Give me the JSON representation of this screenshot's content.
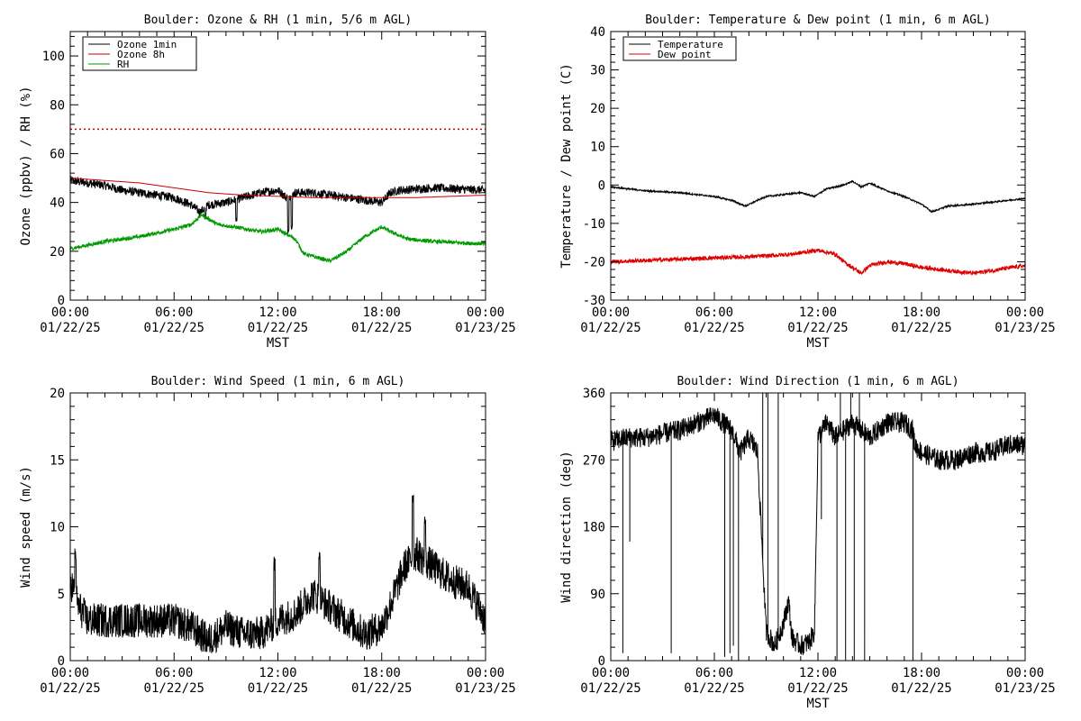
{
  "chart_data": [
    {
      "type": "line",
      "title": "Boulder: Ozone & RH (1 min, 5/6 m AGL)",
      "xlabel": "MST",
      "ylabel": "Ozone (ppbv) / RH (%)",
      "ylim": [
        0,
        110
      ],
      "yticks": [
        0,
        20,
        40,
        60,
        80,
        100
      ],
      "xticks": [
        "00:00",
        "06:00",
        "12:00",
        "18:00",
        "00:00"
      ],
      "xtick_dates": [
        "01/22/25",
        "01/22/25",
        "01/22/25",
        "01/22/25",
        "01/23/25"
      ],
      "legend_position": "top-left",
      "reference_line": {
        "y": 70,
        "color": "#cc0000",
        "style": "dotted"
      },
      "series": [
        {
          "name": "Ozone 1min",
          "color": "#000000",
          "noise": 1.8,
          "points": [
            [
              0,
              49
            ],
            [
              1,
              48
            ],
            [
              2,
              47
            ],
            [
              3,
              45
            ],
            [
              4,
              44
            ],
            [
              5,
              43
            ],
            [
              6,
              42
            ],
            [
              7,
              39
            ],
            [
              7.5,
              36
            ],
            [
              8,
              39
            ],
            [
              9,
              40
            ],
            [
              10,
              42
            ],
            [
              11,
              44
            ],
            [
              12,
              45
            ],
            [
              12.5,
              42
            ],
            [
              13,
              44
            ],
            [
              14,
              44
            ],
            [
              15,
              43
            ],
            [
              16,
              42
            ],
            [
              17,
              41
            ],
            [
              18,
              40
            ],
            [
              18.5,
              44
            ],
            [
              19,
              45
            ],
            [
              21,
              46
            ],
            [
              24,
              45
            ]
          ],
          "spikes": [
            [
              12.6,
              28
            ],
            [
              12.8,
              30
            ],
            [
              9.6,
              33
            ],
            [
              7.8,
              34
            ]
          ]
        },
        {
          "name": "Ozone 8h",
          "color": "#cc0000",
          "noise": 0,
          "points": [
            [
              0,
              50
            ],
            [
              2,
              49
            ],
            [
              4,
              48
            ],
            [
              6,
              46
            ],
            [
              8,
              44
            ],
            [
              10,
              43
            ],
            [
              12,
              42.5
            ],
            [
              14,
              42
            ],
            [
              16,
              42
            ],
            [
              18,
              42
            ],
            [
              20,
              42
            ],
            [
              22,
              42.5
            ],
            [
              24,
              43
            ]
          ]
        },
        {
          "name": "RH",
          "color": "#009900",
          "noise": 0.8,
          "points": [
            [
              0,
              21
            ],
            [
              2,
              24
            ],
            [
              4,
              26
            ],
            [
              6,
              29
            ],
            [
              7,
              31
            ],
            [
              7.6,
              35
            ],
            [
              8.5,
              31
            ],
            [
              9.5,
              30
            ],
            [
              11,
              28
            ],
            [
              12,
              29
            ],
            [
              13,
              25
            ],
            [
              13.5,
              19
            ],
            [
              14,
              18
            ],
            [
              15,
              16
            ],
            [
              16,
              20
            ],
            [
              17,
              26
            ],
            [
              18,
              30
            ],
            [
              18.5,
              28
            ],
            [
              19.5,
              25
            ],
            [
              21,
              24
            ],
            [
              24,
              23
            ]
          ]
        }
      ]
    },
    {
      "type": "line",
      "title": "Boulder: Temperature & Dew point (1 min, 6 m AGL)",
      "xlabel": "MST",
      "ylabel": "Temperature / Dew point (C)",
      "ylim": [
        -30,
        40
      ],
      "yticks": [
        -30,
        -20,
        -10,
        0,
        10,
        20,
        30,
        40
      ],
      "xticks": [
        "00:00",
        "06:00",
        "12:00",
        "18:00",
        "00:00"
      ],
      "xtick_dates": [
        "01/22/25",
        "01/22/25",
        "01/22/25",
        "01/22/25",
        "01/23/25"
      ],
      "legend_position": "top-left",
      "series": [
        {
          "name": "Temperature",
          "color": "#000000",
          "noise": 0.2,
          "points": [
            [
              0,
              -0.5
            ],
            [
              2,
              -1.5
            ],
            [
              4,
              -2
            ],
            [
              6,
              -3
            ],
            [
              7,
              -4
            ],
            [
              7.8,
              -5.5
            ],
            [
              8.5,
              -4
            ],
            [
              9,
              -3
            ],
            [
              10,
              -2.5
            ],
            [
              11,
              -2
            ],
            [
              11.8,
              -3
            ],
            [
              12.5,
              -1
            ],
            [
              13.5,
              0
            ],
            [
              14,
              1
            ],
            [
              14.5,
              -0.5
            ],
            [
              15,
              0.5
            ],
            [
              16,
              -1.5
            ],
            [
              17,
              -3
            ],
            [
              18,
              -5
            ],
            [
              18.6,
              -7
            ],
            [
              19.5,
              -5.5
            ],
            [
              21,
              -5
            ],
            [
              24,
              -3.5
            ]
          ]
        },
        {
          "name": "Dew point",
          "color": "#dd0000",
          "noise": 0.55,
          "points": [
            [
              0,
              -20
            ],
            [
              3,
              -19.5
            ],
            [
              6,
              -19
            ],
            [
              9,
              -18.5
            ],
            [
              10.5,
              -18
            ],
            [
              12,
              -17
            ],
            [
              13,
              -18
            ],
            [
              13.5,
              -20
            ],
            [
              14.5,
              -23
            ],
            [
              15,
              -21
            ],
            [
              16,
              -20
            ],
            [
              17,
              -20.5
            ],
            [
              18,
              -21.5
            ],
            [
              19,
              -22
            ],
            [
              21,
              -23
            ],
            [
              24,
              -21
            ]
          ]
        }
      ]
    },
    {
      "type": "line",
      "title": "Boulder: Wind Speed (1 min, 6 m AGL)",
      "xlabel": "",
      "ylabel": "Wind speed (m/s)",
      "ylim": [
        0,
        20
      ],
      "yticks": [
        0,
        5,
        10,
        15,
        20
      ],
      "xticks": [
        "00:00",
        "06:00",
        "12:00",
        "18:00",
        "00:00"
      ],
      "xtick_dates": [
        "01/22/25",
        "01/22/25",
        "01/22/25",
        "01/22/25",
        "01/23/25"
      ],
      "series": [
        {
          "name": "",
          "color": "#000000",
          "noise": 1.3,
          "points": [
            [
              0,
              6
            ],
            [
              0.5,
              4
            ],
            [
              1,
              3
            ],
            [
              3,
              3
            ],
            [
              5,
              3
            ],
            [
              6,
              3
            ],
            [
              7,
              2.5
            ],
            [
              8,
              1.5
            ],
            [
              9,
              2.5
            ],
            [
              10,
              2
            ],
            [
              11,
              2
            ],
            [
              12,
              3
            ],
            [
              13,
              3.5
            ],
            [
              14,
              5
            ],
            [
              15,
              4
            ],
            [
              16,
              3
            ],
            [
              17,
              2
            ],
            [
              18,
              2.5
            ],
            [
              18.6,
              4.5
            ],
            [
              19.3,
              7
            ],
            [
              20,
              8
            ],
            [
              21,
              7
            ],
            [
              22,
              6
            ],
            [
              23,
              5.5
            ],
            [
              24,
              3
            ]
          ],
          "spikes": [
            [
              0.3,
              8
            ],
            [
              14.4,
              8.2
            ],
            [
              19.8,
              12.4
            ],
            [
              11.8,
              7.3
            ],
            [
              20.5,
              10.3
            ]
          ]
        }
      ]
    },
    {
      "type": "line",
      "title": "Boulder: Wind Direction (1 min, 6 m AGL)",
      "xlabel": "MST",
      "ylabel": "Wind direction (deg)",
      "ylim": [
        0,
        360
      ],
      "yticks": [
        0,
        90,
        180,
        270,
        360
      ],
      "xticks": [
        "00:00",
        "06:00",
        "12:00",
        "18:00",
        "00:00"
      ],
      "xtick_dates": [
        "01/22/25",
        "01/22/25",
        "01/22/25",
        "01/22/25",
        "01/23/25"
      ],
      "series": [
        {
          "name": "",
          "color": "#000000",
          "noise": 14,
          "points": [
            [
              0,
              295
            ],
            [
              1,
              300
            ],
            [
              2,
              300
            ],
            [
              3,
              305
            ],
            [
              4,
              310
            ],
            [
              5,
              320
            ],
            [
              6,
              330
            ],
            [
              6.5,
              320
            ],
            [
              7,
              310
            ],
            [
              7.5,
              280
            ],
            [
              8,
              300
            ],
            [
              8.5,
              280
            ],
            [
              9,
              40
            ],
            [
              9.5,
              20
            ],
            [
              10,
              50
            ],
            [
              10.3,
              80
            ],
            [
              10.5,
              30
            ],
            [
              11,
              20
            ],
            [
              11.5,
              25
            ],
            [
              11.8,
              40
            ],
            [
              12,
              300
            ],
            [
              12.5,
              320
            ],
            [
              13,
              300
            ],
            [
              14,
              320
            ],
            [
              15,
              300
            ],
            [
              16,
              320
            ],
            [
              17,
              320
            ],
            [
              17.5,
              310
            ],
            [
              17.6,
              290
            ],
            [
              18,
              280
            ],
            [
              19,
              270
            ],
            [
              20,
              270
            ],
            [
              21,
              280
            ],
            [
              22,
              280
            ],
            [
              23,
              290
            ],
            [
              24,
              290
            ]
          ],
          "drops": [
            [
              0.7,
              10
            ],
            [
              1.1,
              160
            ],
            [
              3.5,
              10
            ],
            [
              6.6,
              5
            ],
            [
              6.9,
              10
            ],
            [
              7.1,
              20
            ],
            [
              7.4,
              0
            ],
            [
              8.3,
              300
            ],
            [
              8.8,
              360
            ],
            [
              9.1,
              360
            ],
            [
              9.7,
              360
            ],
            [
              12.2,
              190
            ],
            [
              13.1,
              0
            ],
            [
              13.3,
              360
            ],
            [
              13.6,
              0
            ],
            [
              13.9,
              360
            ],
            [
              14.1,
              0
            ],
            [
              14.4,
              360
            ],
            [
              14.7,
              0
            ],
            [
              17.5,
              0
            ]
          ]
        }
      ]
    }
  ]
}
